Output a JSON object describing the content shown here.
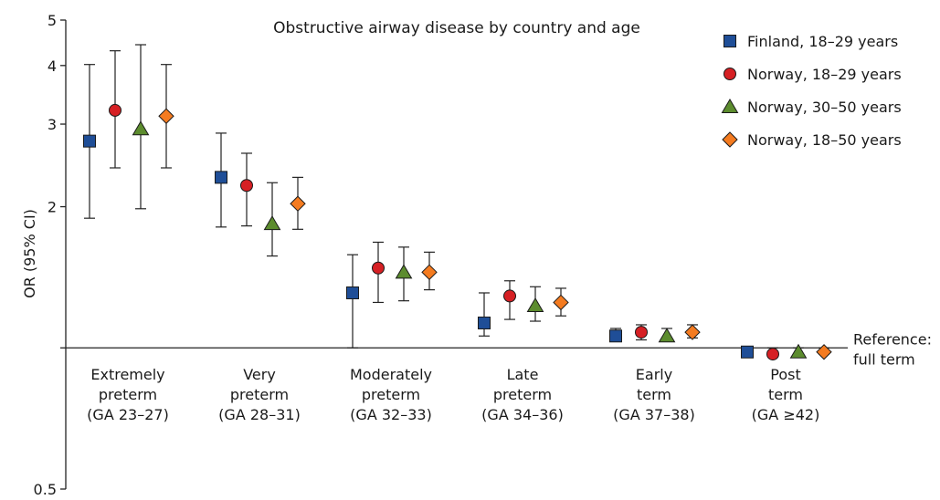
{
  "chart_data": {
    "type": "scatter",
    "title": "Obstructive airway disease by country and age",
    "ylabel": "OR (95% CI)",
    "xlabel": "",
    "yscale": "log",
    "ylim": [
      0.5,
      5
    ],
    "yticks": [
      {
        "value": 0.5,
        "label": "0.5"
      },
      {
        "value": 1,
        "label": ""
      },
      {
        "value": 2,
        "label": "2"
      },
      {
        "value": 3,
        "label": "3"
      },
      {
        "value": 4,
        "label": "4"
      },
      {
        "value": 5,
        "label": "5"
      }
    ],
    "reference_line": {
      "value": 1,
      "label": [
        "Reference:",
        "full term"
      ]
    },
    "categories": [
      {
        "id": "extremely-preterm",
        "lines": [
          "Extremely",
          "preterm",
          "(GA 23–27)"
        ]
      },
      {
        "id": "very-preterm",
        "lines": [
          "Very",
          "preterm",
          "(GA 28–31)"
        ]
      },
      {
        "id": "moderately-preterm",
        "lines": [
          "Moderately",
          "preterm",
          "(GA 32–33)"
        ]
      },
      {
        "id": "late-preterm",
        "lines": [
          "Late",
          "preterm",
          "(GA 34–36)"
        ]
      },
      {
        "id": "early-term",
        "lines": [
          "Early",
          "term",
          "(GA 37–38)"
        ]
      },
      {
        "id": "post-term",
        "lines": [
          "Post",
          "term",
          "(GA ≥42)"
        ]
      }
    ],
    "legend_position": "top-right",
    "grid": false,
    "series": [
      {
        "name": "Finland, 18–29 years",
        "marker": "square",
        "color": "#1f4e97",
        "values": [
          2.76,
          2.31,
          1.31,
          1.13,
          1.06,
          0.98
        ],
        "ci_low": [
          1.89,
          1.81,
          1.0,
          1.06,
          1.04,
          0.97
        ],
        "ci_high": [
          4.02,
          2.87,
          1.58,
          1.31,
          1.1,
          1.0
        ]
      },
      {
        "name": "Norway, 18–29 years",
        "marker": "circle",
        "color": "#d62024",
        "values": [
          3.21,
          2.22,
          1.48,
          1.29,
          1.08,
          0.97
        ],
        "ci_low": [
          2.42,
          1.82,
          1.25,
          1.15,
          1.04,
          0.97
        ],
        "ci_high": [
          4.3,
          2.6,
          1.68,
          1.39,
          1.12,
          1.0
        ]
      },
      {
        "name": "Norway, 30–50 years",
        "marker": "triangle",
        "color": "#5c8c2e",
        "values": [
          2.93,
          1.84,
          1.45,
          1.23,
          1.06,
          0.98
        ],
        "ci_low": [
          1.98,
          1.57,
          1.26,
          1.14,
          1.04,
          0.97
        ],
        "ci_high": [
          4.43,
          2.25,
          1.64,
          1.35,
          1.1,
          1.0
        ]
      },
      {
        "name": "Norway, 18–50 years",
        "marker": "diamond",
        "color": "#f47b20",
        "values": [
          3.12,
          2.03,
          1.45,
          1.25,
          1.08,
          0.98
        ],
        "ci_low": [
          2.42,
          1.79,
          1.33,
          1.17,
          1.05,
          0.97
        ],
        "ci_high": [
          4.02,
          2.31,
          1.6,
          1.34,
          1.12,
          1.0
        ]
      }
    ]
  }
}
